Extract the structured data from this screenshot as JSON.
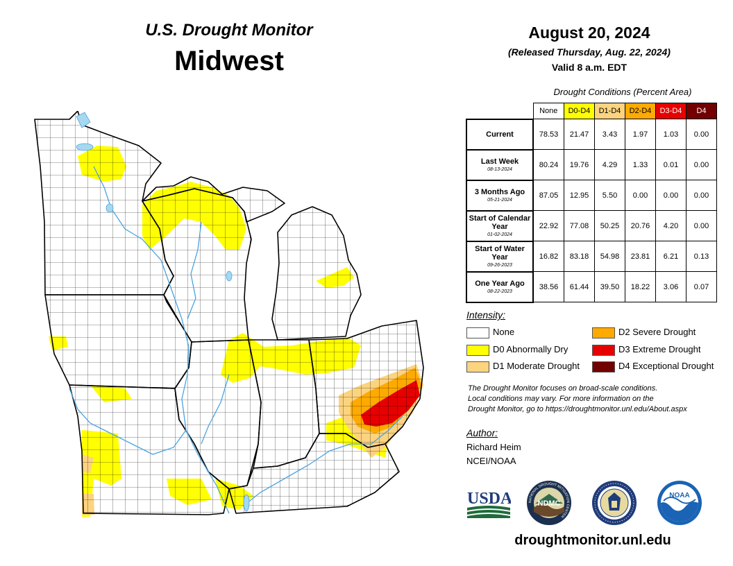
{
  "header": {
    "monitor_title": "U.S. Drought Monitor",
    "region": "Midwest",
    "date": "August 20, 2024",
    "released": "(Released Thursday, Aug. 22, 2024)",
    "valid": "Valid 8 a.m. EDT"
  },
  "table": {
    "caption": "Drought Conditions (Percent Area)",
    "columns": [
      {
        "label": "None",
        "color": "#ffffff"
      },
      {
        "label": "D0-D4",
        "color": "#ffff00"
      },
      {
        "label": "D1-D4",
        "color": "#fcd37f"
      },
      {
        "label": "D2-D4",
        "color": "#ffaa00"
      },
      {
        "label": "D3-D4",
        "color": "#e60000"
      },
      {
        "label": "D4",
        "color": "#730000"
      }
    ],
    "rows": [
      {
        "label": "Current",
        "date": "",
        "values": [
          "78.53",
          "21.47",
          "3.43",
          "1.97",
          "1.03",
          "0.00"
        ]
      },
      {
        "label": "Last Week",
        "date": "08-13-2024",
        "values": [
          "80.24",
          "19.76",
          "4.29",
          "1.33",
          "0.01",
          "0.00"
        ]
      },
      {
        "label": "3 Months Ago",
        "date": "05-21-2024",
        "values": [
          "87.05",
          "12.95",
          "5.50",
          "0.00",
          "0.00",
          "0.00"
        ]
      },
      {
        "label": "Start of Calendar Year",
        "date": "01-02-2024",
        "values": [
          "22.92",
          "77.08",
          "50.25",
          "20.76",
          "4.20",
          "0.00"
        ]
      },
      {
        "label": "Start of Water Year",
        "date": "09-26-2023",
        "values": [
          "16.82",
          "83.18",
          "54.98",
          "23.81",
          "6.21",
          "0.13"
        ]
      },
      {
        "label": "One Year Ago",
        "date": "08-22-2023",
        "values": [
          "38.56",
          "61.44",
          "39.50",
          "18.22",
          "3.06",
          "0.07"
        ]
      }
    ]
  },
  "legend": {
    "title": "Intensity:",
    "items": [
      {
        "label": "None",
        "color": "#ffffff"
      },
      {
        "label": "D0 Abnormally Dry",
        "color": "#ffff00"
      },
      {
        "label": "D1 Moderate Drought",
        "color": "#fcd37f"
      },
      {
        "label": "D2 Severe Drought",
        "color": "#ffaa00"
      },
      {
        "label": "D3 Extreme Drought",
        "color": "#e60000"
      },
      {
        "label": "D4 Exceptional Drought",
        "color": "#730000"
      }
    ]
  },
  "disclaimer": [
    "The Drought Monitor focuses on broad-scale conditions.",
    "Local conditions may vary. For more information on the",
    "Drought Monitor, go to https://droughtmonitor.unl.edu/About.aspx"
  ],
  "author": {
    "title": "Author:",
    "name": "Richard Heim",
    "org": "NCEI/NOAA"
  },
  "logos": {
    "usda": "USDA",
    "ndmc": "NDMC",
    "noaa": "NOAA",
    "ndmc_ring_text": "NATIONAL DROUGHT MITIGATION CENTER"
  },
  "website": "droughtmonitor.unl.edu",
  "map": {
    "water_color": "#a6d8f0",
    "drought_areas": [
      {
        "category": "D0",
        "area": "northern Minnesota"
      },
      {
        "category": "D0",
        "area": "northwestern Wisconsin and Upper Peninsula of Michigan"
      },
      {
        "category": "D0",
        "area": "northern Illinois, Indiana and northwestern Ohio"
      },
      {
        "category": "D0",
        "area": "southwestern Missouri"
      },
      {
        "category": "D0",
        "area": "southern Illinois and western Kentucky"
      },
      {
        "category": "D1",
        "area": "southwestern Missouri"
      },
      {
        "category": "D1",
        "area": "southern and eastern Ohio"
      },
      {
        "category": "D2",
        "area": "eastern Ohio"
      },
      {
        "category": "D3",
        "area": "southeastern Ohio"
      }
    ]
  }
}
